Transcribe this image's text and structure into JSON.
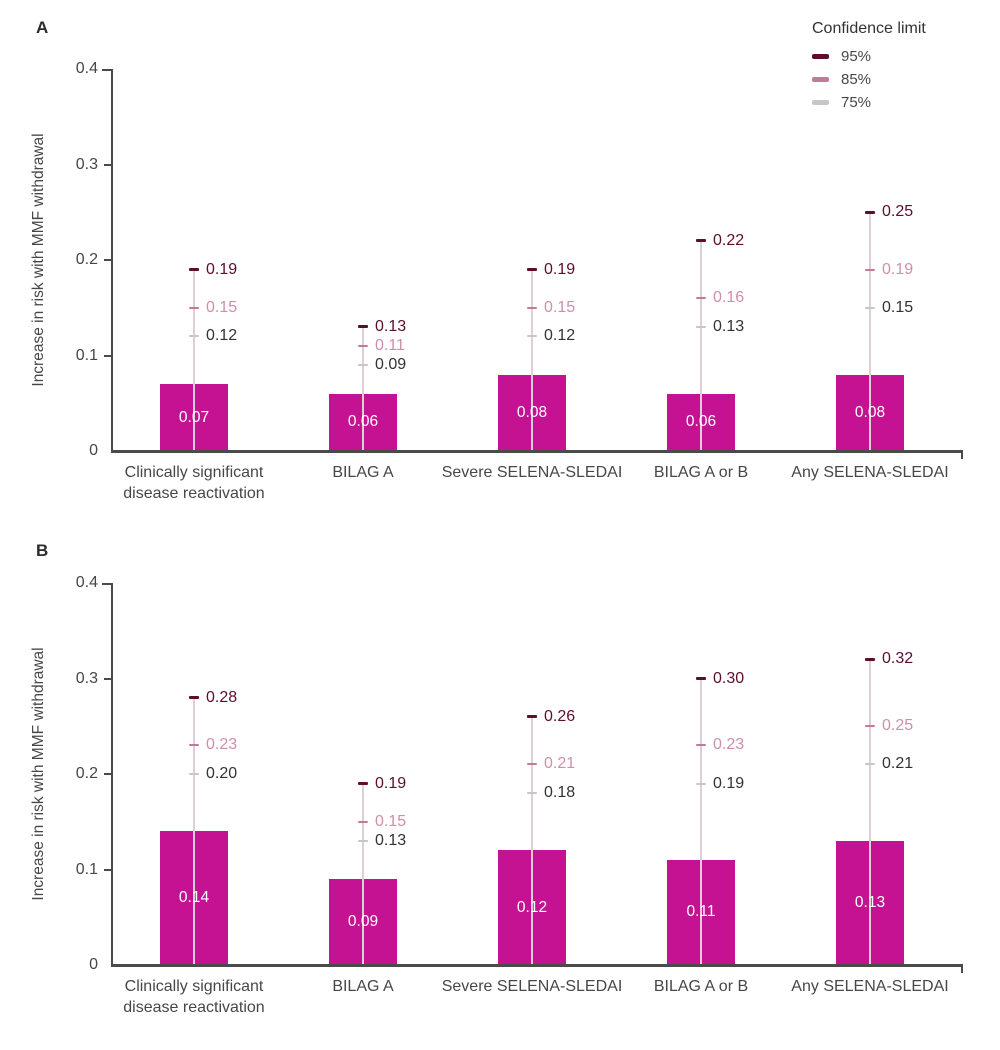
{
  "figure": {
    "legend": {
      "title": "Confidence limit",
      "items": [
        {
          "label": "95%",
          "color": "#5e0d2c"
        },
        {
          "label": "85%",
          "color": "#c4799b"
        },
        {
          "label": "75%",
          "color": "#c6c6c6"
        }
      ]
    },
    "colors": {
      "bar": "#c51293",
      "axis": "#4a4a4a",
      "text": "#474747",
      "bar_value_text": "#ffffff",
      "error_line": "#dccfd8",
      "limit_95_dash": "#5e0d2c",
      "limit_95_text": "#5e0d2c",
      "limit_85_dash": "#c4799b",
      "limit_85_text": "#cf8fa9",
      "limit_75_dash": "#c6c6c6",
      "limit_75_text": "#333333"
    }
  },
  "chart_data": [
    {
      "type": "bar",
      "panel": "A",
      "ylabel": "Increase in risk with MMF withdrawal",
      "ylim": [
        0,
        0.4
      ],
      "yticks": [
        0,
        0.1,
        0.2,
        0.3,
        0.4
      ],
      "grid": false,
      "legend_position": "top-right",
      "categories": [
        "Clinically significant\ndisease reactivation",
        "BILAG A",
        "Severe SELENA-SLEDAI",
        "BILAG A or B",
        "Any SELENA-SLEDAI"
      ],
      "values": [
        0.07,
        0.06,
        0.08,
        0.06,
        0.08
      ],
      "confidence_limits": {
        "95": [
          0.19,
          0.13,
          0.19,
          0.22,
          0.25
        ],
        "85": [
          0.15,
          0.11,
          0.15,
          0.16,
          0.19
        ],
        "75": [
          0.12,
          0.09,
          0.12,
          0.13,
          0.15
        ]
      }
    },
    {
      "type": "bar",
      "panel": "B",
      "ylabel": "Increase in risk with MMF withdrawal",
      "ylim": [
        0,
        0.4
      ],
      "yticks": [
        0,
        0.1,
        0.2,
        0.3,
        0.4
      ],
      "grid": false,
      "legend_position": "none",
      "categories": [
        "Clinically significant\ndisease reactivation",
        "BILAG A",
        "Severe SELENA-SLEDAI",
        "BILAG A or B",
        "Any SELENA-SLEDAI"
      ],
      "values": [
        0.14,
        0.09,
        0.12,
        0.11,
        0.13
      ],
      "confidence_limits": {
        "95": [
          0.28,
          0.19,
          0.26,
          0.3,
          0.32
        ],
        "85": [
          0.23,
          0.15,
          0.21,
          0.23,
          0.25
        ],
        "75": [
          0.2,
          0.13,
          0.18,
          0.19,
          0.21
        ]
      }
    }
  ]
}
